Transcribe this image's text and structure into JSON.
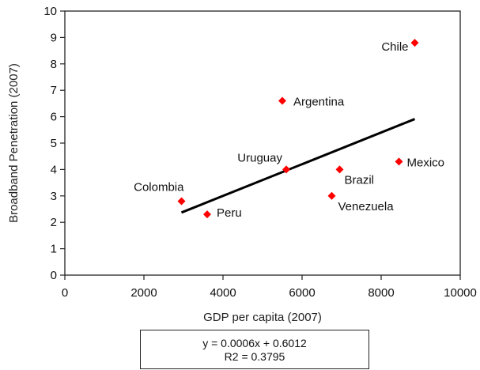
{
  "chart_data": {
    "type": "scatter",
    "xlabel": "GDP per capita (2007)",
    "ylabel": "Broadband Penetration (2007)",
    "xlim": [
      0,
      10000
    ],
    "ylim": [
      0,
      10
    ],
    "xticks": [
      0,
      2000,
      4000,
      6000,
      8000,
      10000
    ],
    "yticks": [
      0,
      1,
      2,
      3,
      4,
      5,
      6,
      7,
      8,
      9,
      10
    ],
    "grid": false,
    "marker_color": "#ff0000",
    "trendline": {
      "x_start": 2950,
      "x_end": 8850,
      "slope": 0.0006,
      "intercept": 0.6012,
      "color": "#000000"
    },
    "points": [
      {
        "label": "Chile",
        "x": 8850,
        "y": 8.8
      },
      {
        "label": "Argentina",
        "x": 5500,
        "y": 6.6
      },
      {
        "label": "Mexico",
        "x": 8450,
        "y": 4.3
      },
      {
        "label": "Uruguay",
        "x": 5600,
        "y": 4.0
      },
      {
        "label": "Brazil",
        "x": 6950,
        "y": 4.0
      },
      {
        "label": "Colombia",
        "x": 2950,
        "y": 2.8
      },
      {
        "label": "Venezuela",
        "x": 6750,
        "y": 3.0
      },
      {
        "label": "Peru",
        "x": 3600,
        "y": 2.3
      }
    ],
    "equation": "y = 0.0006x + 0.6012",
    "r_squared": "R2 = 0.3795"
  }
}
